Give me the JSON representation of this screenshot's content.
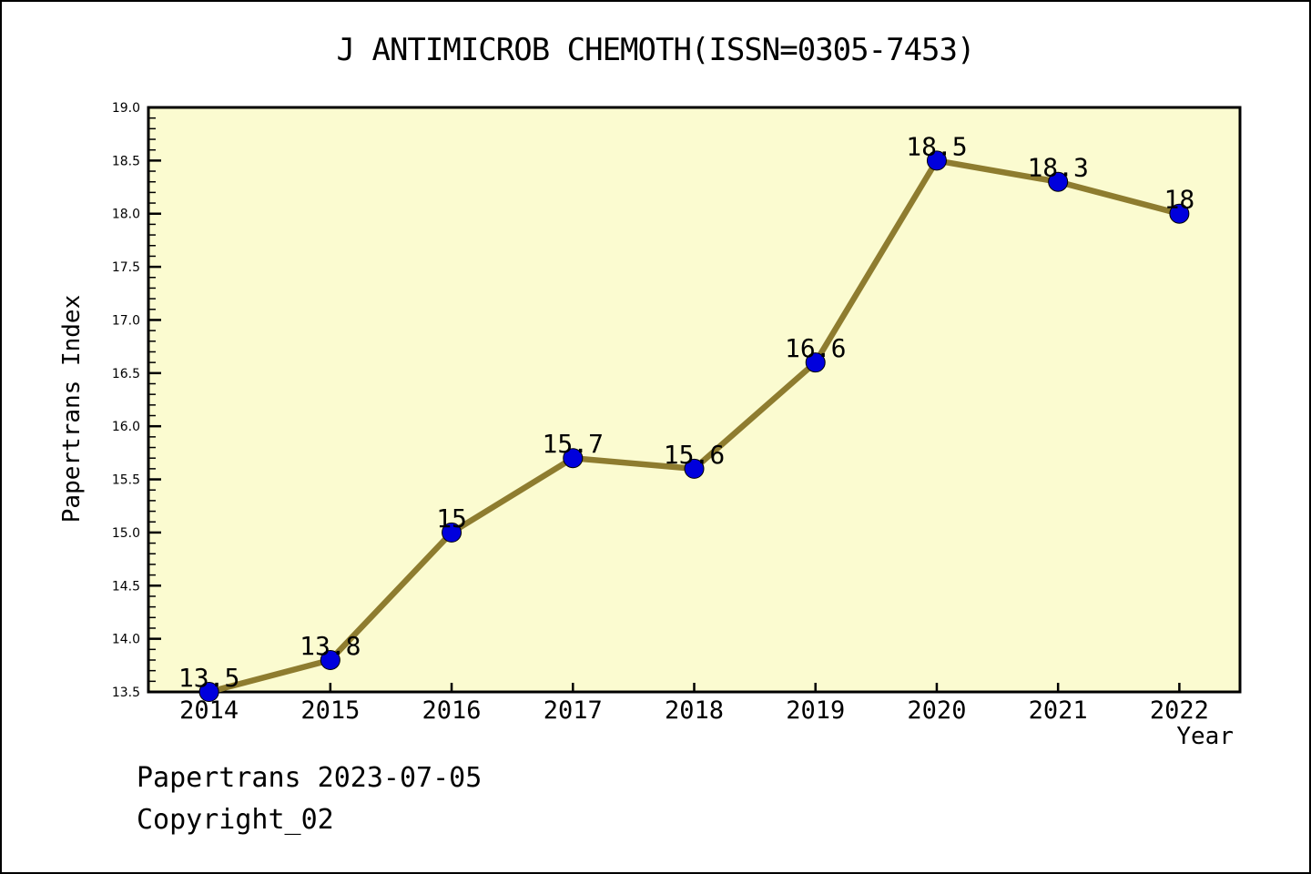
{
  "page": {
    "footer_line1": "Papertrans 2023-07-05",
    "footer_line2": "Copyright_02"
  },
  "chart_data": {
    "type": "line",
    "title": "J ANTIMICROB CHEMOTH(ISSN=0305-7453)",
    "xlabel": "Year",
    "ylabel": "Papertrans Index",
    "x": [
      2014,
      2015,
      2016,
      2017,
      2018,
      2019,
      2020,
      2021,
      2022
    ],
    "values": [
      13.5,
      13.8,
      15,
      15.7,
      15.6,
      16.6,
      18.5,
      18.3,
      18
    ],
    "point_labels": [
      "13.5",
      "13.8",
      "15",
      "15.7",
      "15.6",
      "16.6",
      "18.5",
      "18.3",
      "18"
    ],
    "xlim": [
      2013.5,
      2022.5
    ],
    "ylim": [
      13.5,
      19.0
    ],
    "y_major_step": 0.5,
    "y_minor_step": 0.1,
    "grid": false,
    "legend": "none",
    "marker": "circle",
    "colors": {
      "line": "#8E7C2F",
      "marker": "#0000DD",
      "marker_edge": "#000000",
      "plot_bg": "#FBFBD0",
      "frame": "#000000",
      "text": "#000000"
    }
  }
}
